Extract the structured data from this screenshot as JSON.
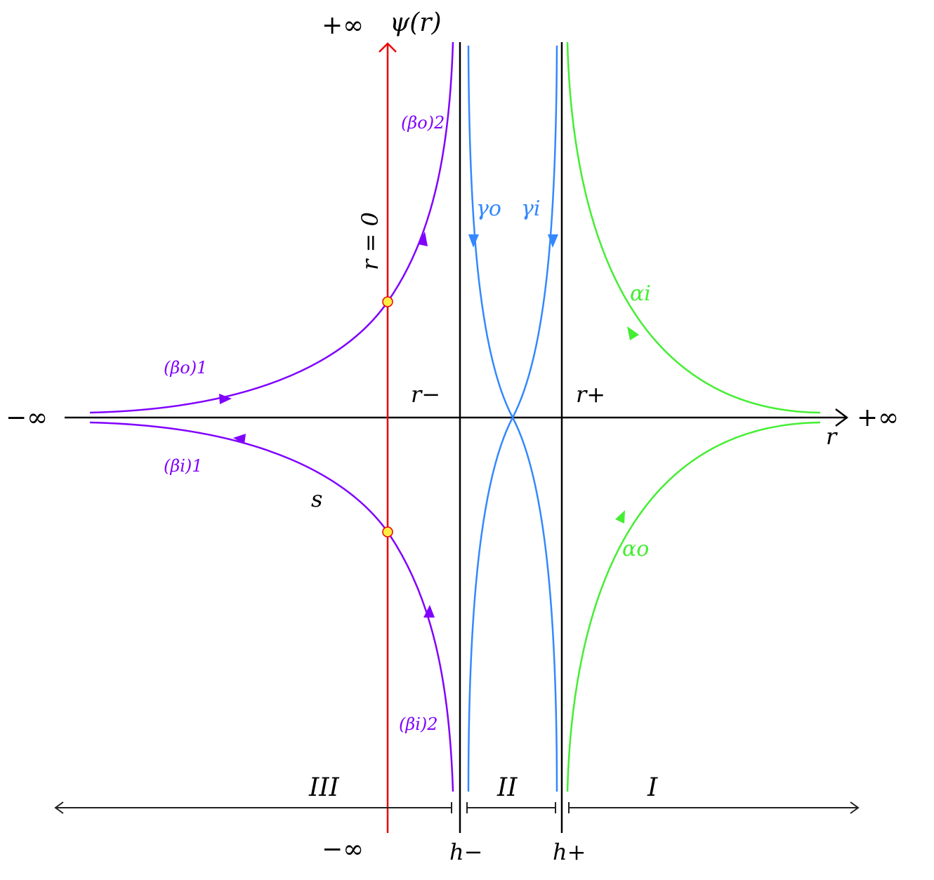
{
  "labels": {
    "y_axis": "ψ(r)",
    "y_top_inf": "+∞",
    "y_bottom_inf": "−∞",
    "x_left_inf": "−∞",
    "x_right_inf": "+∞",
    "x_axis": "r",
    "r_zero": "r = 0",
    "r_minus": "r−",
    "r_plus": "r+",
    "h_minus": "h−",
    "h_plus": "h+",
    "region_3": "III",
    "region_2": "II",
    "region_1": "I",
    "s": "s",
    "beta_o_1": "(βo)1",
    "beta_o_2": "(βo)2",
    "beta_i_1": "(βi)1",
    "beta_i_2": "(βi)2",
    "gamma_o": "γo",
    "gamma_i": "γi",
    "alpha_i": "αi",
    "alpha_o": "αo"
  },
  "colors": {
    "beta": "#8000ff",
    "gamma": "#3388ff",
    "alpha": "#44ee33",
    "r_zero_line": "#ee0000",
    "point_fill": "#ffee44",
    "axes": "#000000"
  }
}
